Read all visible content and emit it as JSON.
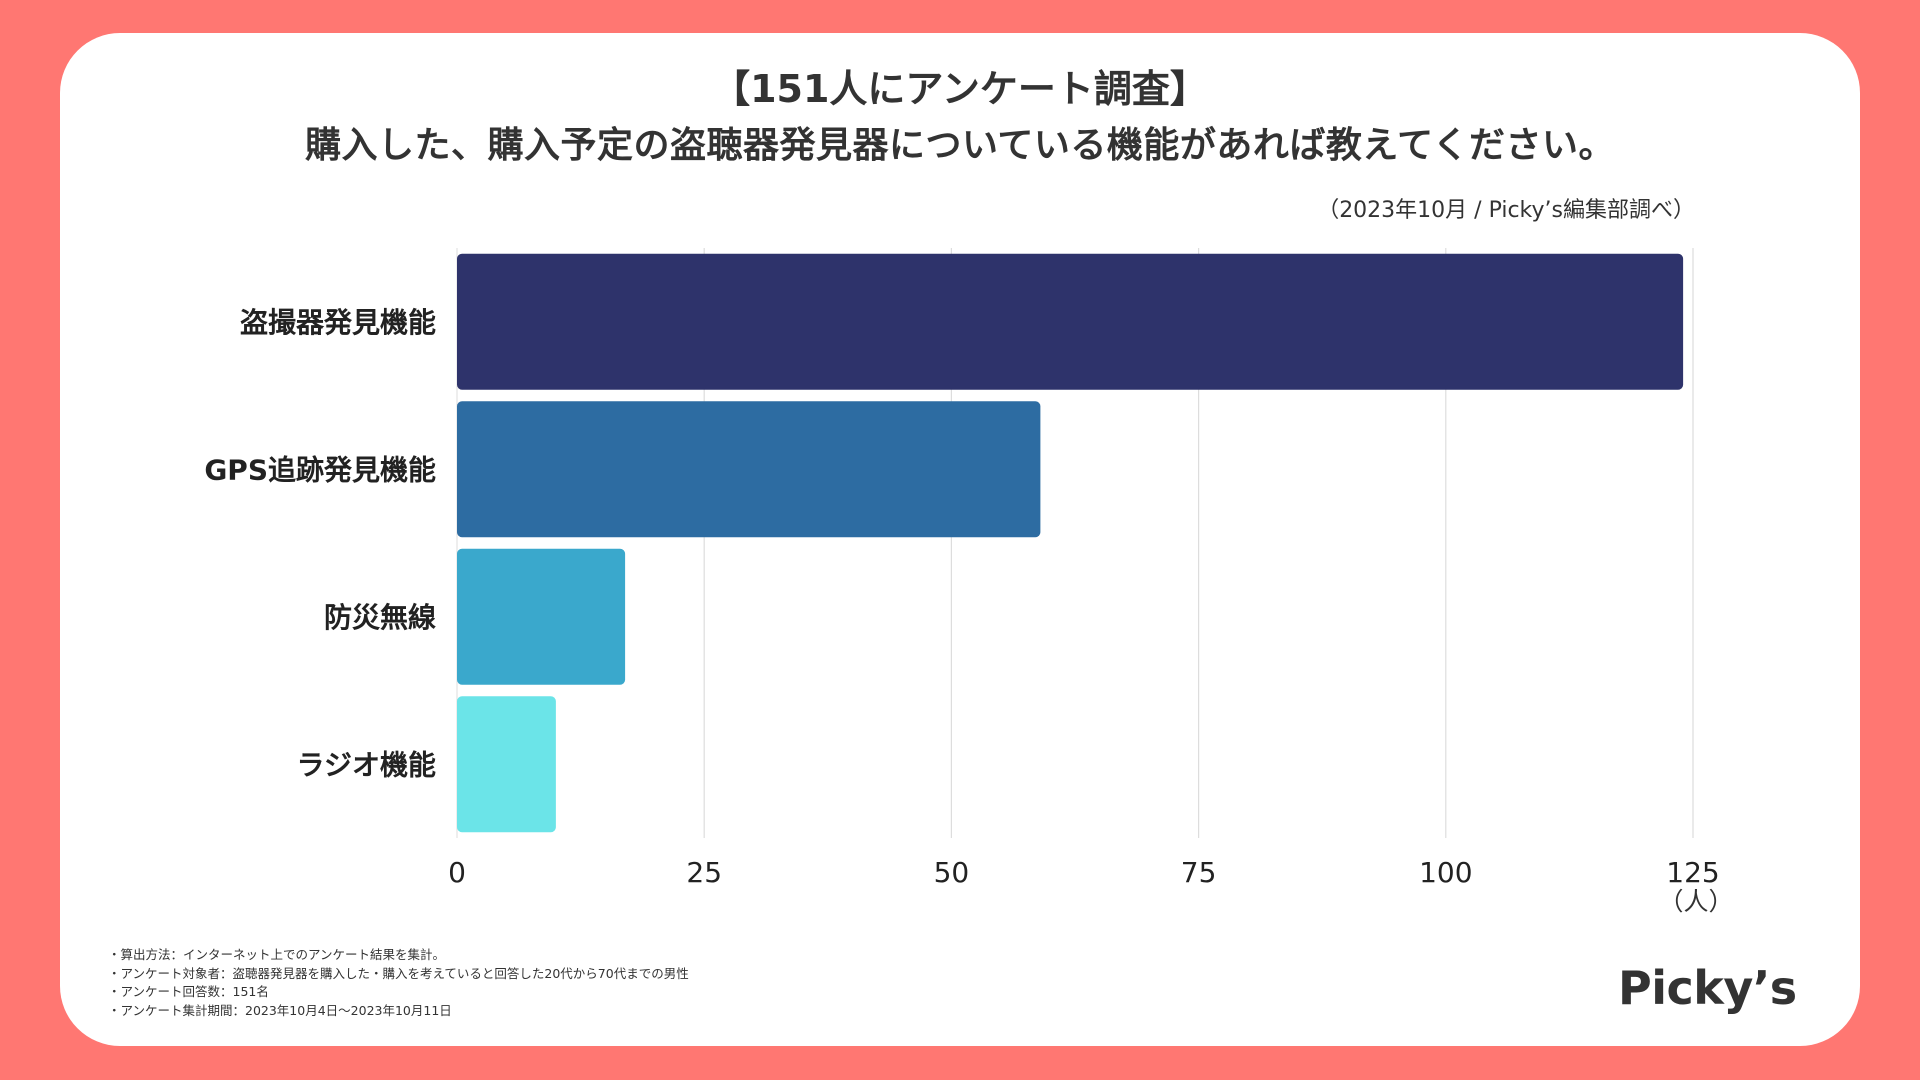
{
  "header": {
    "title_line1": "【151人にアンケート調査】",
    "title_line2": "購入した、購入予定の盗聴器発見器についている機能があれば教えてください。",
    "source": "（2023年10月 / Picky’s編集部調べ）"
  },
  "chart_data": {
    "type": "bar",
    "orientation": "horizontal",
    "categories": [
      "盗撮器発見機能",
      "GPS追跡発見機能",
      "防災無線",
      "ラジオ機能"
    ],
    "values": [
      124,
      59,
      17,
      10
    ],
    "colors": [
      "#2E336B",
      "#2D6CA2",
      "#3AA8CC",
      "#6BE4E8"
    ],
    "xlim": [
      0,
      125
    ],
    "xticks": [
      0,
      25,
      50,
      75,
      100,
      125
    ],
    "xtick_labels": [
      "0",
      "25",
      "50",
      "75",
      "100",
      "125"
    ],
    "unit_label": "（人）",
    "grid": true,
    "title": "購入した、購入予定の盗聴器発見器についている機能があれば教えてください。"
  },
  "notes": [
    "・算出方法：インターネット上でのアンケート結果を集計。",
    "・アンケート対象者：盗聴器発見器を購入した・購入を考えていると回答した20代から70代までの男性",
    "・アンケート回答数：151名",
    "・アンケート集計期間：2023年10月4日〜2023年10月11日"
  ],
  "brand": {
    "logo_text": "Picky’s",
    "background_color": "#FF7772"
  }
}
